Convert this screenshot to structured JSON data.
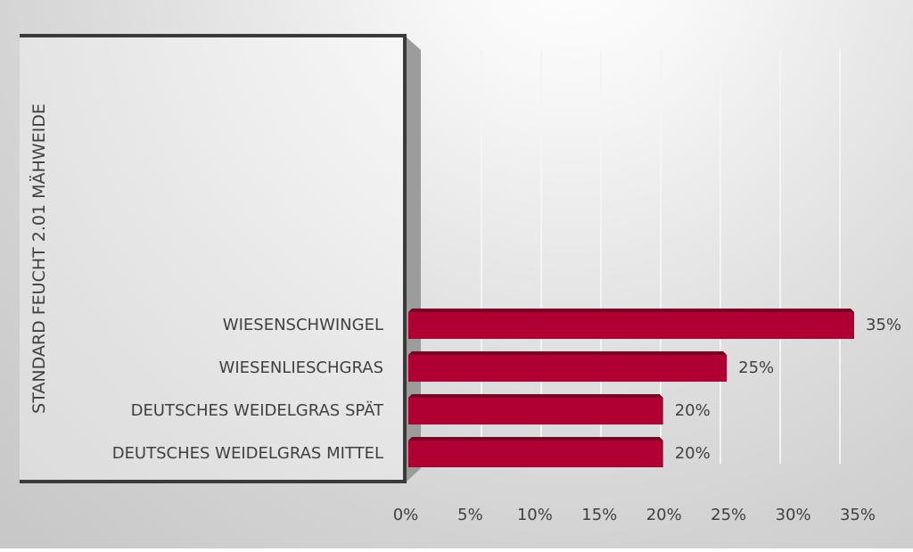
{
  "chart_data": {
    "type": "bar",
    "orientation": "horizontal",
    "style": "3d",
    "title": "",
    "ylabel": "STANDARD FEUCHT  2.01 MÄHWEIDE",
    "xlabel": "",
    "categories": [
      "WIESENSCHWINGEL",
      "WIESENLIESCHGRAS",
      "DEUTSCHES WEIDELGRAS SPÄT",
      "DEUTSCHES WEIDELGRAS MITTEL"
    ],
    "values": [
      35,
      25,
      20,
      20
    ],
    "data_labels": [
      "35%",
      "25%",
      "20%",
      "20%"
    ],
    "xlim": [
      0,
      35
    ],
    "x_ticks": [
      "0%",
      "5%",
      "10%",
      "15%",
      "20%",
      "25%",
      "30%",
      "35%"
    ],
    "grid": true,
    "legend": "none",
    "bar_color": "#B00033"
  }
}
